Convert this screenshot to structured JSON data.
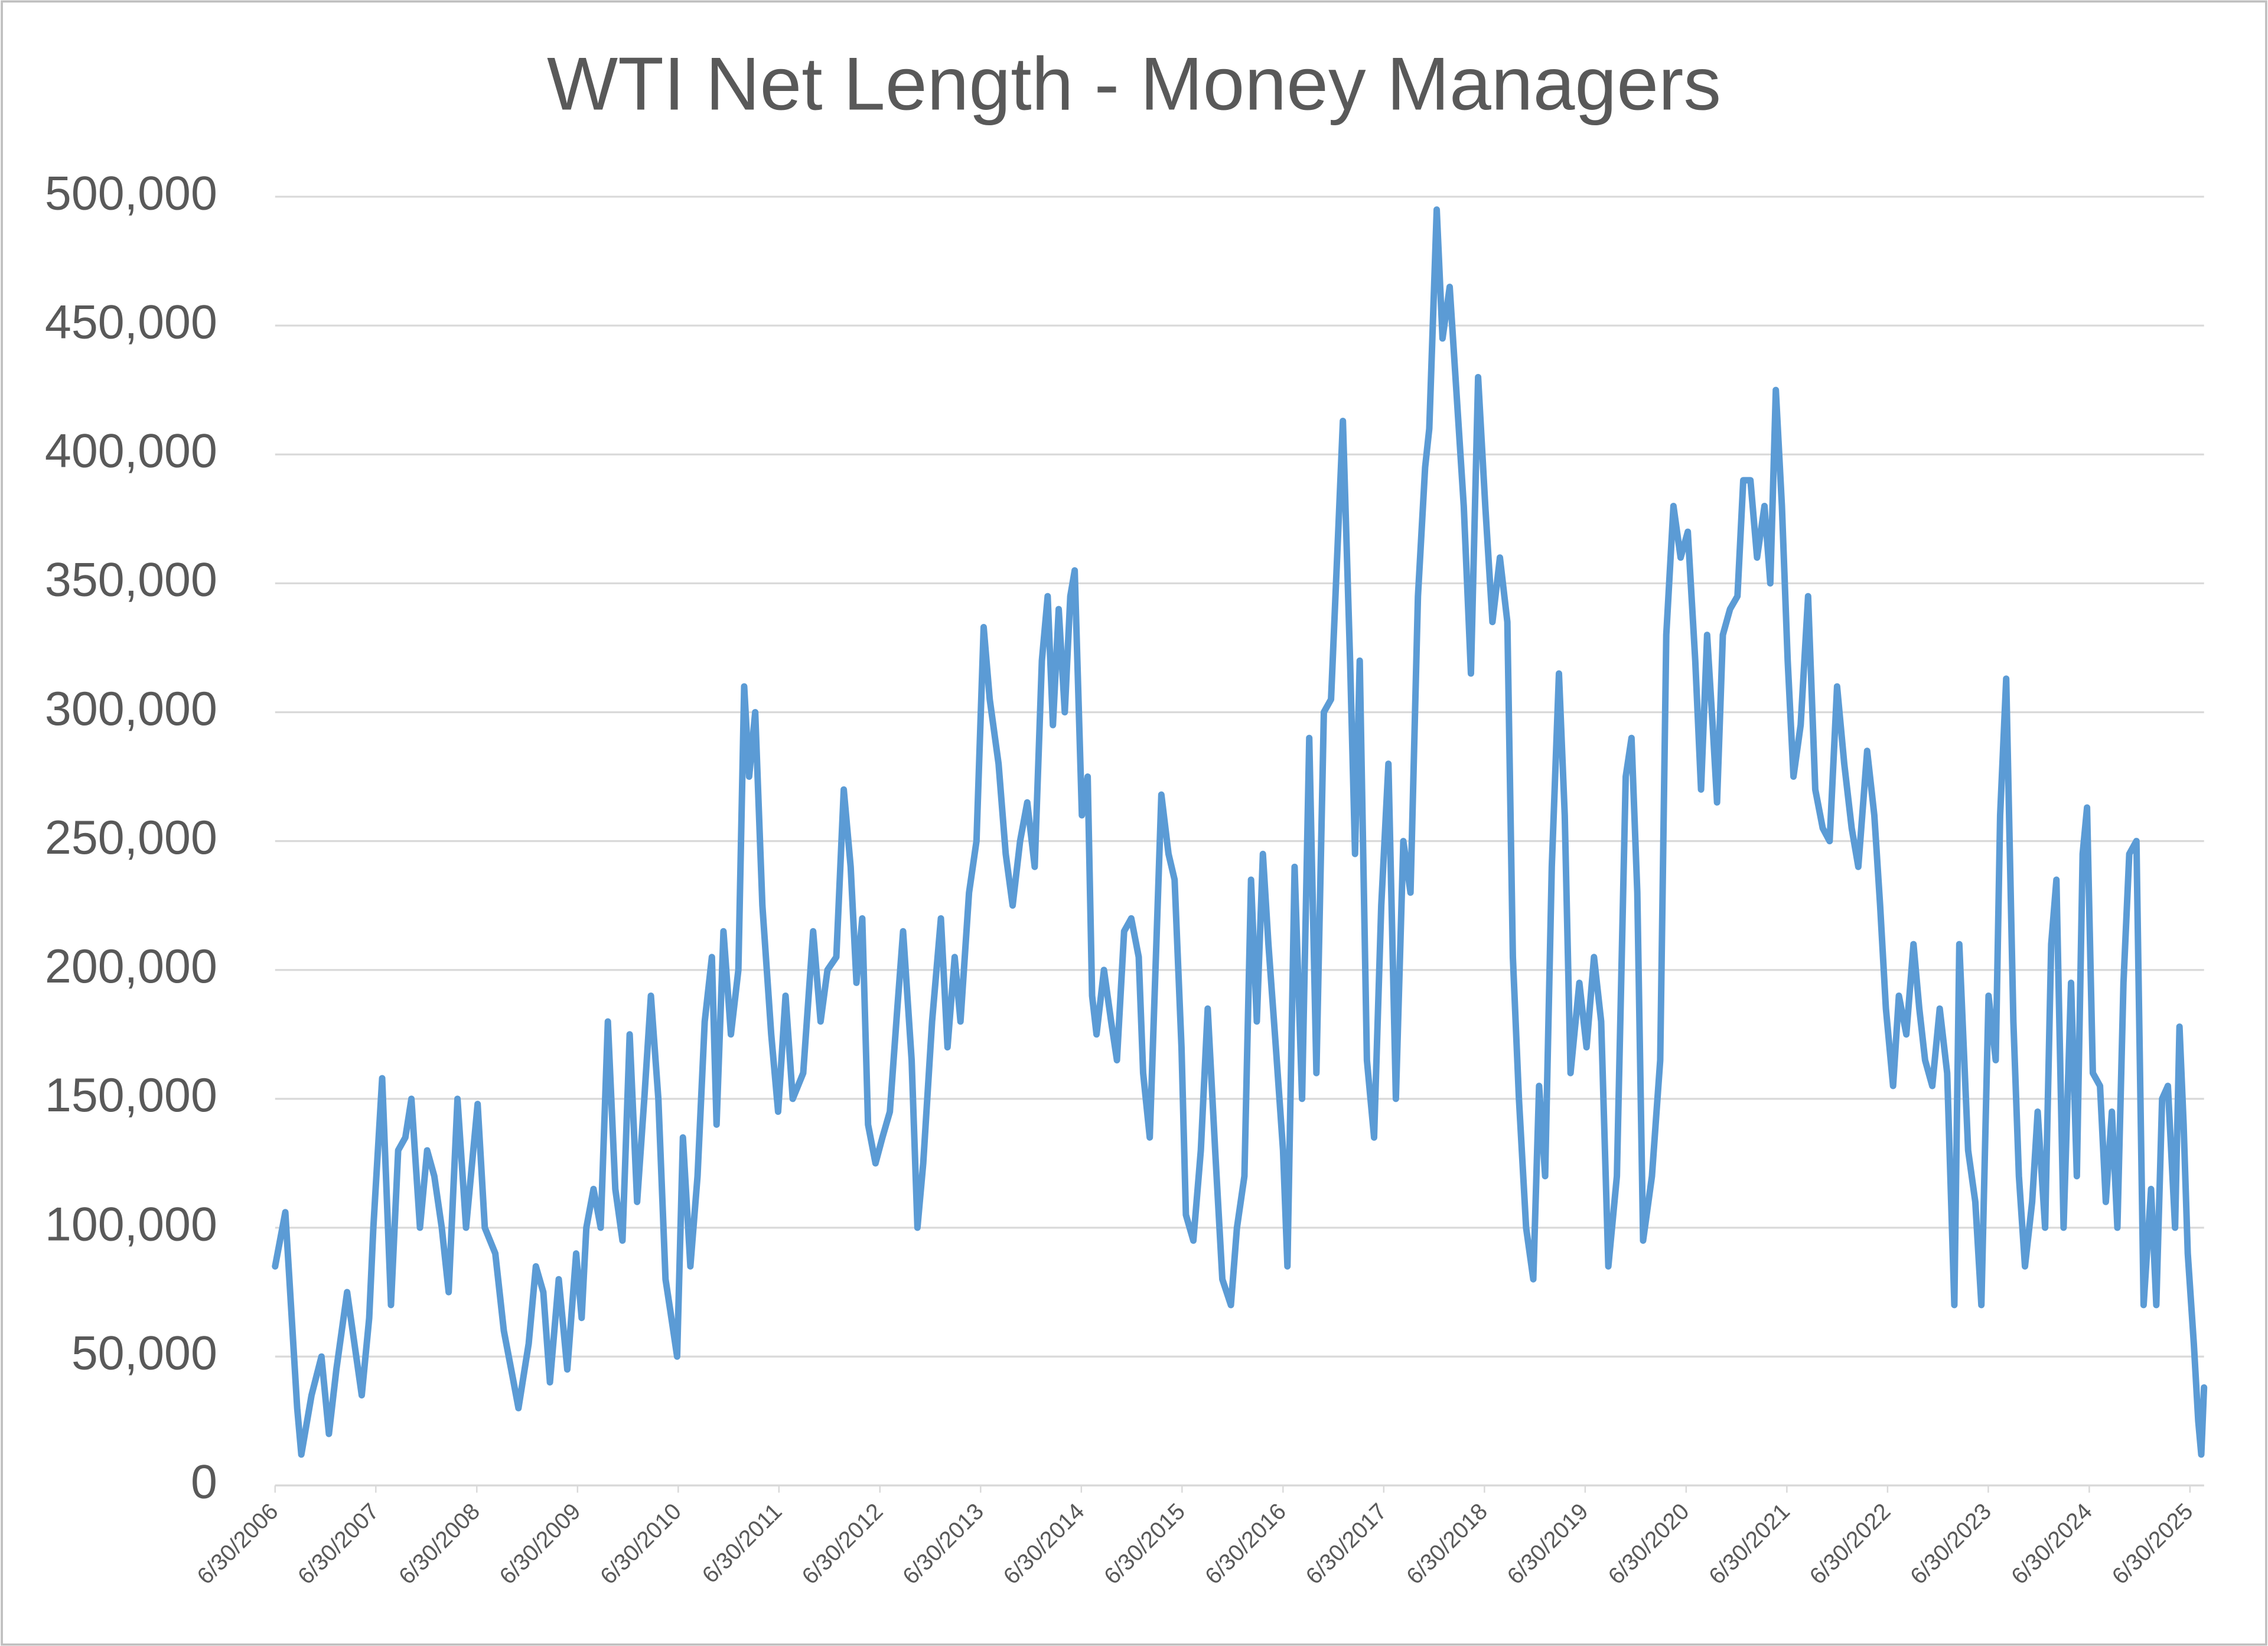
{
  "chart_data": {
    "type": "line",
    "title": "WTI Net Length - Money Managers",
    "color": "#5b9bd5",
    "grid": true,
    "x": [
      "6/30/2006",
      "8/6/2006",
      "9/18/2006",
      "10/3/2006",
      "11/9/2006",
      "12/15/2006",
      "1/11/2007",
      "2/7/2007",
      "3/18/2007",
      "5/10/2007",
      "6/6/2007",
      "6/21/2007",
      "7/23/2007",
      "8/24/2007",
      "9/19/2007",
      "10/15/2007",
      "11/6/2007",
      "12/7/2007",
      "1/2/2008",
      "1/28/2008",
      "2/24/2008",
      "3/20/2008",
      "4/21/2008",
      "5/22/2008",
      "7/3/2008",
      "7/29/2008",
      "9/5/2008",
      "10/6/2008",
      "11/7/2008",
      "11/28/2008",
      "1/4/2009",
      "1/30/2009",
      "2/26/2009",
      "3/22/2009",
      "4/23/2009",
      "5/24/2009",
      "6/25/2009",
      "7/15/2009",
      "8/1/2009",
      "8/27/2009",
      "9/22/2009",
      "10/18/2009",
      "11/14/2009",
      "12/10/2009",
      "1/5/2010",
      "2/1/2010",
      "2/27/2010",
      "3/23/2010",
      "4/19/2010",
      "5/15/2010",
      "6/1/2010",
      "6/26/2010",
      "7/17/2010",
      "8/13/2010",
      "9/8/2010",
      "10/4/2010",
      "10/30/2010",
      "11/16/2010",
      "12/11/2010",
      "1/7/2011",
      "2/3/2011",
      "2/24/2011",
      "3/14/2011",
      "4/5/2011",
      "5/1/2011",
      "6/2/2011",
      "6/27/2011",
      "7/24/2011",
      "8/19/2011",
      "9/26/2011",
      "11/1/2011",
      "11/28/2011",
      "12/23/2011",
      "1/24/2012",
      "2/20/2012",
      "3/16/2012",
      "4/6/2012",
      "4/27/2012",
      "5/18/2012",
      "6/14/2012",
      "7/9/2012",
      "8/5/2012",
      "9/1/2012",
      "9/22/2012",
      "10/23/2012",
      "11/13/2012",
      "12/4/2012",
      "1/5/2013",
      "2/6/2013",
      "3/2/2013",
      "3/28/2013",
      "4/18/2013",
      "5/19/2013",
      "6/15/2013",
      "7/11/2013",
      "8/2/2013",
      "9/3/2013",
      "9/29/2013",
      "10/24/2013",
      "11/20/2013",
      "12/16/2013",
      "1/12/2014",
      "2/7/2014",
      "2/28/2014",
      "3/19/2014",
      "4/9/2014",
      "5/1/2014",
      "5/21/2014",
      "6/6/2014",
      "7/2/2014",
      "7/23/2014",
      "8/8/2014",
      "8/24/2014",
      "9/20/2014",
      "10/16/2014",
      "11/6/2014",
      "12/2/2014",
      "12/28/2014",
      "1/24/2015",
      "2/9/2015",
      "3/5/2015",
      "4/1/2015",
      "4/16/2015",
      "5/12/2015",
      "6/3/2015",
      "6/28/2015",
      "7/14/2015",
      "8/10/2015",
      "9/6/2015",
      "10/1/2015",
      "10/28/2015",
      "11/23/2015",
      "12/24/2015",
      "1/15/2016",
      "2/11/2016",
      "3/6/2016",
      "3/27/2016",
      "4/18/2016",
      "5/8/2016",
      "6/4/2016",
      "6/30/2016",
      "7/16/2016",
      "8/11/2016",
      "9/7/2016",
      "10/3/2016",
      "10/29/2016",
      "11/25/2016",
      "12/21/2016",
      "1/16/2017",
      "2/2/2017",
      "2/28/2017",
      "3/18/2017",
      "4/4/2017",
      "4/30/2017",
      "5/26/2017",
      "6/21/2017",
      "7/17/2017",
      "8/13/2017",
      "9/9/2017",
      "10/5/2017",
      "11/1/2017",
      "11/27/2017",
      "12/12/2017",
      "1/8/2018",
      "1/29/2018",
      "2/24/2018",
      "3/20/2018",
      "4/16/2018",
      "5/12/2018",
      "6/7/2018",
      "7/3/2018",
      "7/29/2018",
      "8/25/2018",
      "9/21/2018",
      "10/11/2018",
      "11/2/2018",
      "11/28/2018",
      "12/24/2018",
      "1/14/2019",
      "2/5/2019",
      "3/1/2019",
      "3/27/2019",
      "4/17/2019",
      "5/8/2019",
      "6/9/2019",
      "7/5/2019",
      "8/1/2019",
      "8/27/2019",
      "9/22/2019",
      "10/23/2019",
      "11/24/2019",
      "12/15/2019",
      "1/5/2020",
      "1/26/2020",
      "2/27/2020",
      "3/28/2020",
      "4/19/2020",
      "5/15/2020",
      "6/10/2020",
      "7/6/2020",
      "8/2/2020",
      "8/23/2020",
      "9/14/2020",
      "10/4/2020",
      "10/20/2020",
      "11/10/2020",
      "12/6/2020",
      "1/2/2021",
      "1/23/2021",
      "2/18/2021",
      "3/14/2021",
      "4/10/2021",
      "5/1/2021",
      "5/21/2021",
      "6/12/2021",
      "7/3/2021",
      "7/24/2021",
      "8/19/2021",
      "9/15/2021",
      "10/11/2021",
      "11/7/2021",
      "12/2/2021",
      "12/29/2021",
      "1/24/2022",
      "2/20/2022",
      "3/16/2022",
      "4/17/2022",
      "5/13/2022",
      "6/3/2022",
      "6/24/2022",
      "7/20/2022",
      "8/10/2022",
      "9/6/2022",
      "10/2/2022",
      "10/23/2022",
      "11/13/2022",
      "12/9/2022",
      "1/5/2023",
      "2/1/2023",
      "2/27/2023",
      "3/17/2023",
      "4/18/2023",
      "5/14/2023",
      "6/5/2023",
      "7/1/2023",
      "7/27/2023",
      "8/12/2023",
      "9/3/2023",
      "9/29/2023",
      "10/19/2023",
      "11/10/2023",
      "12/6/2023",
      "12/26/2023",
      "1/22/2024",
      "2/13/2024",
      "3/3/2024",
      "3/29/2024",
      "4/25/2024",
      "5/16/2024",
      "6/6/2024",
      "6/22/2024",
      "7/13/2024",
      "8/8/2024",
      "8/29/2024",
      "9/20/2024",
      "10/10/2024",
      "11/1/2024",
      "11/22/2024",
      "12/18/2024",
      "1/13/2025",
      "2/9/2025",
      "2/28/2025",
      "3/21/2025",
      "4/11/2025",
      "5/7/2025",
      "5/23/2025",
      "6/7/2025",
      "6/22/2025",
      "7/14/2025",
      "7/30/2025",
      "8/10/2025",
      "8/20/2025"
    ],
    "values": [
      85000,
      106000,
      30000,
      12000,
      35000,
      50000,
      20000,
      45000,
      75000,
      35000,
      65000,
      100000,
      158000,
      70000,
      130000,
      135000,
      150000,
      100000,
      130000,
      120000,
      100000,
      75000,
      150000,
      100000,
      148000,
      100000,
      90000,
      60000,
      42000,
      30000,
      55000,
      85000,
      75000,
      40000,
      80000,
      45000,
      90000,
      65000,
      100000,
      115000,
      100000,
      180000,
      115000,
      95000,
      175000,
      110000,
      150000,
      190000,
      150000,
      80000,
      68000,
      50000,
      135000,
      85000,
      120000,
      180000,
      205000,
      140000,
      215000,
      175000,
      200000,
      310000,
      275000,
      300000,
      225000,
      175000,
      145000,
      190000,
      150000,
      160000,
      215000,
      180000,
      200000,
      205000,
      270000,
      240000,
      195000,
      220000,
      140000,
      125000,
      135000,
      145000,
      185000,
      215000,
      165000,
      100000,
      125000,
      180000,
      220000,
      170000,
      205000,
      180000,
      230000,
      250000,
      333000,
      305000,
      280000,
      245000,
      225000,
      250000,
      265000,
      240000,
      320000,
      345000,
      295000,
      340000,
      300000,
      345000,
      355000,
      260000,
      275000,
      190000,
      175000,
      200000,
      180000,
      165000,
      215000,
      220000,
      205000,
      160000,
      135000,
      220000,
      268000,
      245000,
      235000,
      170000,
      105000,
      95000,
      130000,
      185000,
      130000,
      80000,
      70000,
      100000,
      120000,
      235000,
      180000,
      245000,
      210000,
      170000,
      130000,
      85000,
      240000,
      150000,
      290000,
      160000,
      300000,
      305000,
      370000,
      413000,
      320000,
      245000,
      320000,
      165000,
      135000,
      225000,
      280000,
      150000,
      250000,
      230000,
      345000,
      395000,
      410000,
      495000,
      445000,
      465000,
      425000,
      380000,
      315000,
      430000,
      380000,
      335000,
      360000,
      335000,
      205000,
      150000,
      100000,
      80000,
      155000,
      120000,
      240000,
      315000,
      260000,
      160000,
      195000,
      170000,
      205000,
      180000,
      85000,
      120000,
      275000,
      290000,
      230000,
      95000,
      120000,
      165000,
      330000,
      380000,
      360000,
      370000,
      320000,
      270000,
      330000,
      295000,
      265000,
      330000,
      340000,
      345000,
      390000,
      390000,
      360000,
      380000,
      350000,
      425000,
      380000,
      320000,
      275000,
      295000,
      345000,
      270000,
      255000,
      250000,
      310000,
      280000,
      255000,
      240000,
      285000,
      260000,
      225000,
      185000,
      155000,
      190000,
      175000,
      210000,
      185000,
      165000,
      155000,
      185000,
      160000,
      70000,
      210000,
      130000,
      110000,
      70000,
      190000,
      165000,
      260000,
      313000,
      180000,
      120000,
      85000,
      110000,
      145000,
      100000,
      210000,
      235000,
      100000,
      195000,
      120000,
      245000,
      263000,
      160000,
      155000,
      110000,
      145000,
      100000,
      195000,
      245000,
      250000,
      70000,
      115000,
      70000,
      150000,
      155000,
      100000,
      178000,
      140000,
      90000,
      55000,
      25000,
      12000,
      38000
    ],
    "xlim": [
      "6/30/2006",
      "8/20/2025"
    ],
    "xticks": [
      "6/30/2006",
      "6/30/2007",
      "6/30/2008",
      "6/30/2009",
      "6/30/2010",
      "6/30/2011",
      "6/30/2012",
      "6/30/2013",
      "6/30/2014",
      "6/30/2015",
      "6/30/2016",
      "6/30/2017",
      "6/30/2018",
      "6/30/2019",
      "6/30/2020",
      "6/30/2021",
      "6/30/2022",
      "6/30/2023",
      "6/30/2024",
      "6/30/2025"
    ],
    "ylim": [
      0,
      500000
    ],
    "yticks": [
      0,
      {
        "value": 50000,
        "label": "50,000"
      },
      {
        "value": 100000,
        "label": "100,000"
      },
      {
        "value": 150000,
        "label": "150,000"
      },
      {
        "value": 200000,
        "label": "200,000"
      },
      {
        "value": 250000,
        "label": "250,000"
      },
      {
        "value": 300000,
        "label": "300,000"
      },
      {
        "value": 350000,
        "label": "350,000"
      },
      {
        "value": 400000,
        "label": "400,000"
      },
      {
        "value": 450000,
        "label": "450,000"
      },
      {
        "value": 500000,
        "label": "500,000"
      }
    ]
  }
}
